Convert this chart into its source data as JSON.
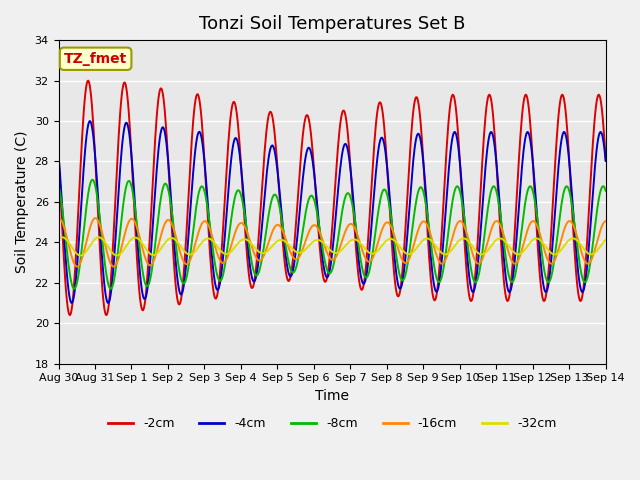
{
  "title": "Tonzi Soil Temperatures Set B",
  "xlabel": "Time",
  "ylabel": "Soil Temperature (C)",
  "ylim": [
    18,
    34
  ],
  "yticks": [
    18,
    20,
    22,
    24,
    26,
    28,
    30,
    32,
    34
  ],
  "xtick_labels": [
    "Aug 30",
    "Aug 31",
    "Sep 1",
    "Sep 2",
    "Sep 3",
    "Sep 4",
    "Sep 5",
    "Sep 6",
    "Sep 7",
    "Sep 8",
    "Sep 9",
    "Sep 10",
    "Sep 11",
    "Sep 12",
    "Sep 13",
    "Sep 14"
  ],
  "colors": {
    "-2cm": "#dd0000",
    "-4cm": "#0000cc",
    "-8cm": "#00bb00",
    "-16cm": "#ff8800",
    "-32cm": "#dddd00"
  },
  "legend_labels": [
    "-2cm",
    "-4cm",
    "-8cm",
    "-16cm",
    "-32cm"
  ],
  "fig_bg_color": "#f0f0f0",
  "ax_bg_color": "#e8e8e8",
  "annotation_text": "TZ_fmet",
  "annotation_color": "#cc0000",
  "annotation_bg": "#ffffcc",
  "annotation_border": "#999900",
  "grid_color": "#ffffff",
  "title_fontsize": 13,
  "axis_fontsize": 10,
  "tick_fontsize": 8,
  "legend_fontsize": 9,
  "line_width": 1.4,
  "amp_envelope": [
    1.0,
    1.0,
    0.95,
    0.9,
    0.85,
    0.75,
    0.7,
    0.72,
    0.8,
    0.85,
    0.88,
    0.88,
    0.88,
    0.88,
    0.88
  ]
}
